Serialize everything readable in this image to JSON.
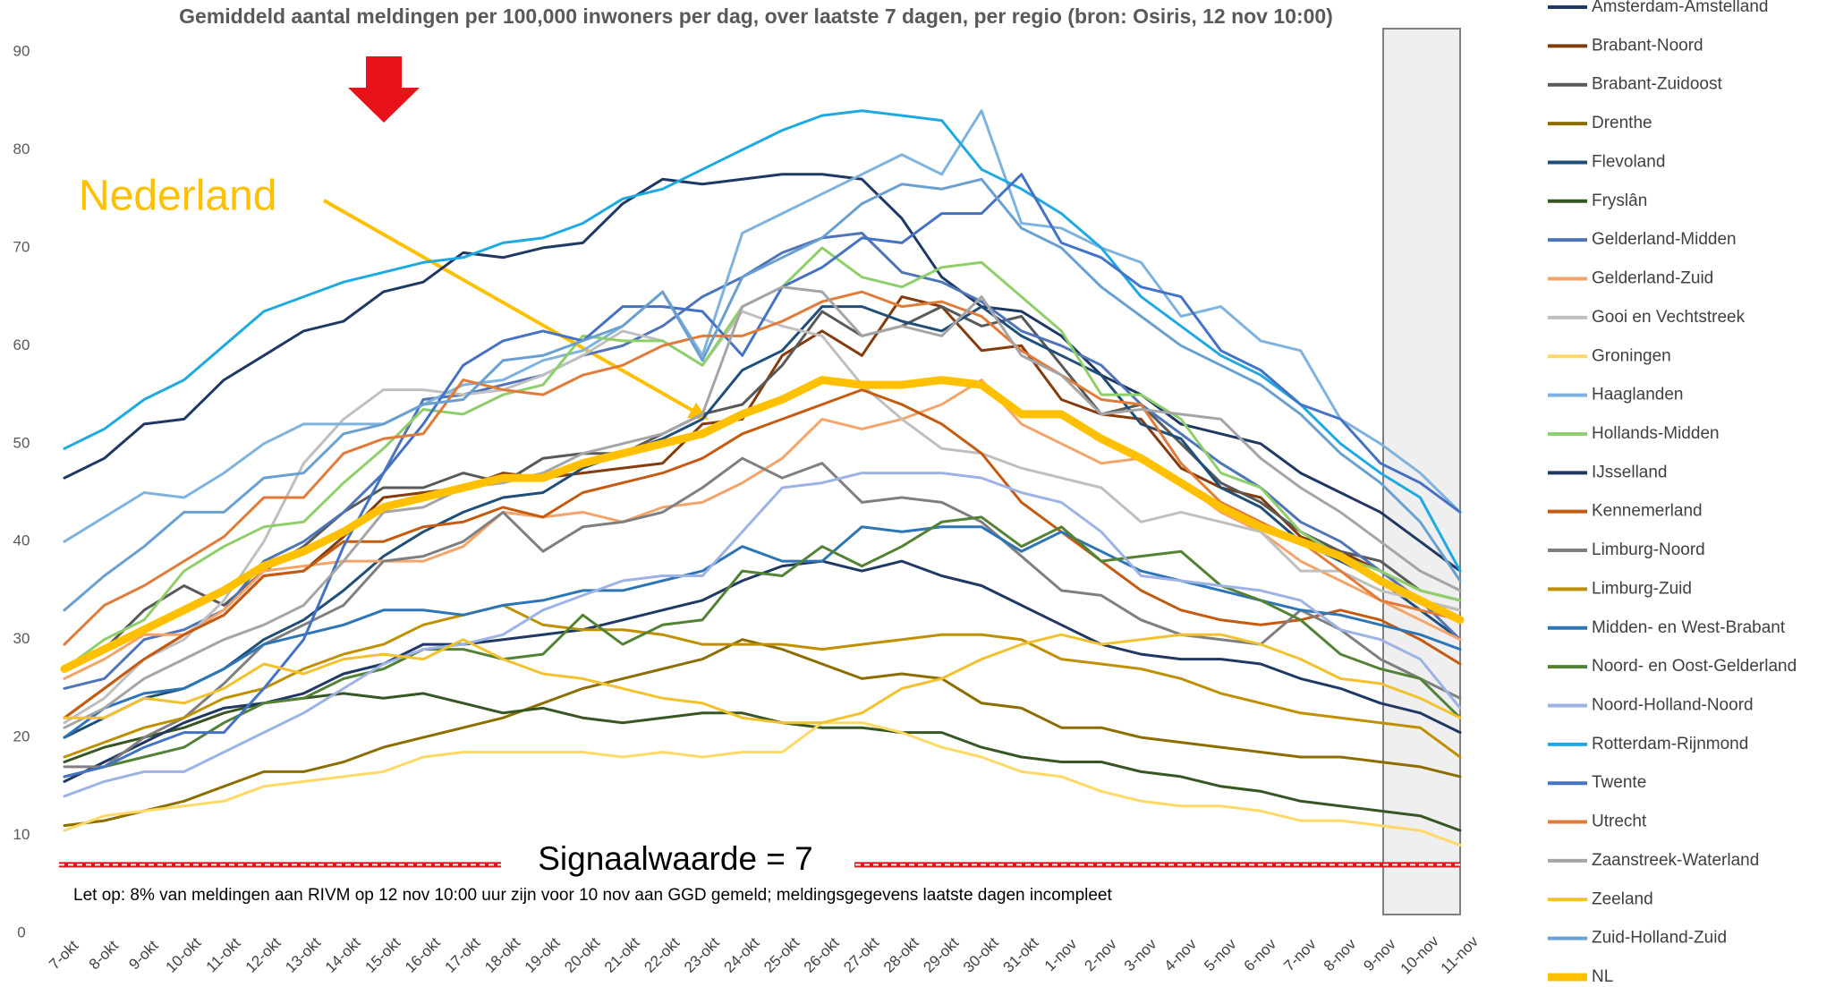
{
  "chart_data": {
    "type": "line",
    "title": "Gemiddeld aantal meldingen per 100,000 inwoners per dag, over laatste 7 dagen, per regio (bron: Osiris, 12 nov 10:00)",
    "annotations": {
      "nederland": "Nederland",
      "signal_label": "Signaalwaarde = 7",
      "note": "Let op: 8% van meldingen aan RIVM op 12 nov 10:00 uur zijn voor 10 nov aan GGD gemeld; meldingsgegevens laatste dagen incompleet"
    },
    "signal_value": 7,
    "grid": false,
    "legend": "right",
    "ylim": [
      0,
      90
    ],
    "yticks": [
      0,
      10,
      20,
      30,
      40,
      50,
      60,
      70,
      80,
      90
    ],
    "categories": [
      "7-okt",
      "8-okt",
      "9-okt",
      "10-okt",
      "11-okt",
      "12-okt",
      "13-okt",
      "14-okt",
      "15-okt",
      "16-okt",
      "17-okt",
      "18-okt",
      "19-okt",
      "20-okt",
      "21-okt",
      "22-okt",
      "23-okt",
      "24-okt",
      "25-okt",
      "26-okt",
      "27-okt",
      "28-okt",
      "29-okt",
      "30-okt",
      "31-okt",
      "1-nov",
      "2-nov",
      "3-nov",
      "4-nov",
      "5-nov",
      "6-nov",
      "7-nov",
      "8-nov",
      "9-nov",
      "10-nov",
      "11-nov"
    ],
    "series": [
      {
        "name": "Amsterdam-Amstelland",
        "color": "#1f3864",
        "values": [
          46.5,
          48.5,
          52,
          52.5,
          56.5,
          59,
          61.5,
          62.5,
          65.5,
          66.5,
          69.5,
          69,
          70,
          70.5,
          74.5,
          77,
          76.5,
          77,
          77.5,
          77.5,
          77,
          73,
          67,
          64,
          63.5,
          61,
          57,
          55,
          52,
          51,
          50,
          47,
          45,
          43,
          40,
          37
        ]
      },
      {
        "name": "Brabant-Noord",
        "color": "#843c0c",
        "values": [
          22,
          25,
          28,
          30.5,
          32.5,
          36.5,
          37,
          40.5,
          44.5,
          45,
          45.5,
          47,
          46.5,
          47,
          47.5,
          48,
          52,
          52.5,
          59,
          61.5,
          59,
          65,
          64,
          59.5,
          60,
          54.5,
          53,
          52.5,
          47.5,
          45.5,
          44.5,
          40.5,
          39,
          37,
          34,
          33
        ]
      },
      {
        "name": "Brabant-Zuidoost",
        "color": "#595959",
        "values": [
          27,
          29,
          33,
          35.5,
          33.5,
          37,
          39.5,
          43,
          45.5,
          45.5,
          47,
          46,
          48.5,
          49,
          49,
          51,
          53,
          54,
          58,
          63.5,
          61,
          62,
          64,
          62,
          63,
          58,
          53,
          54,
          50,
          46,
          44,
          41,
          39,
          38,
          35,
          34
        ]
      },
      {
        "name": "Drenthe",
        "color": "#8c6d00",
        "values": [
          11,
          11.5,
          12.5,
          13.5,
          15,
          16.5,
          16.5,
          17.5,
          19,
          20,
          21,
          22,
          23.5,
          25,
          26,
          27,
          28,
          30,
          29,
          27.5,
          26,
          26.5,
          26,
          23.5,
          23,
          21,
          21,
          20,
          19.5,
          19,
          18.5,
          18,
          18,
          17.5,
          17,
          16
        ]
      },
      {
        "name": "Flevoland",
        "color": "#1f4e79",
        "values": [
          20,
          22,
          24,
          25,
          27,
          30,
          32,
          35,
          38.5,
          41,
          43,
          44.5,
          45,
          47.5,
          49,
          50.5,
          52.5,
          57.5,
          59.5,
          64,
          64,
          62.5,
          61.5,
          64,
          61,
          59,
          57,
          52,
          50.5,
          45.5,
          43.5,
          40,
          38,
          36,
          33,
          30
        ]
      },
      {
        "name": "Fryslân",
        "color": "#375623",
        "values": [
          17.5,
          19,
          20,
          21,
          22.5,
          23.5,
          24,
          24.5,
          24,
          24.5,
          23.5,
          22.5,
          23,
          22,
          21.5,
          22,
          22.5,
          22.5,
          21.5,
          21,
          21,
          20.5,
          20.5,
          19,
          18,
          17.5,
          17.5,
          16.5,
          16,
          15,
          14.5,
          13.5,
          13,
          12.5,
          12,
          10.5
        ]
      },
      {
        "name": "Gelderland-Midden",
        "color": "#4f74b8",
        "values": [
          25,
          26,
          30,
          31,
          33,
          38,
          40,
          43,
          47,
          54.5,
          55,
          56,
          57,
          59,
          60,
          62,
          65,
          67,
          69.5,
          71,
          71.5,
          67.5,
          66.5,
          64.5,
          61.5,
          60,
          58,
          54,
          51,
          48,
          45.5,
          42,
          40,
          37,
          34,
          30
        ]
      },
      {
        "name": "Gelderland-Zuid",
        "color": "#f4a46a",
        "values": [
          26,
          28,
          30.5,
          30.5,
          33,
          37,
          37.5,
          38,
          38,
          38,
          39.5,
          43,
          42.5,
          43,
          42,
          43.5,
          44,
          46,
          48.5,
          52.5,
          51.5,
          52.5,
          54,
          56.5,
          52,
          50,
          48,
          48.5,
          46,
          43,
          41,
          38,
          36,
          34,
          32,
          30
        ]
      },
      {
        "name": "Gooi en Vechtstreek",
        "color": "#bfbfbf",
        "values": [
          21.5,
          24,
          28,
          30,
          34,
          40,
          48,
          52.5,
          55.5,
          55.5,
          55,
          55.5,
          57,
          59,
          61.5,
          60.5,
          58,
          63.5,
          62,
          61,
          56,
          52.5,
          49.5,
          49,
          47.5,
          46.5,
          45.5,
          42,
          43,
          42,
          41,
          37,
          37,
          35,
          34,
          33
        ]
      },
      {
        "name": "Groningen",
        "color": "#ffd966",
        "values": [
          10.5,
          12,
          12.5,
          13,
          13.5,
          15,
          15.5,
          16,
          16.5,
          18,
          18.5,
          18.5,
          18.5,
          18.5,
          18,
          18.5,
          18,
          18.5,
          18.5,
          21.5,
          21.5,
          20.5,
          19,
          18,
          16.5,
          16,
          14.5,
          13.5,
          13,
          13,
          12.5,
          11.5,
          11.5,
          11,
          10.5,
          9
        ]
      },
      {
        "name": "Haaglanden",
        "color": "#7fb2dc",
        "values": [
          40,
          42.5,
          45,
          44.5,
          47,
          50,
          52,
          52,
          52,
          54,
          56,
          56.5,
          58.5,
          59.5,
          62,
          65.5,
          59,
          71.5,
          73.5,
          75.5,
          77.5,
          79.5,
          77.5,
          84,
          72.5,
          72,
          70,
          68.5,
          63,
          64,
          60.5,
          59.5,
          52.5,
          50,
          47,
          43
        ]
      },
      {
        "name": "Hollands-Midden",
        "color": "#8fcf6a",
        "values": [
          27,
          30,
          32,
          37,
          39.5,
          41.5,
          42,
          46,
          49.5,
          53.5,
          53,
          55,
          56,
          61,
          60.5,
          60.5,
          58,
          64,
          66,
          70,
          67,
          66,
          68,
          68.5,
          65,
          61.5,
          55,
          55,
          52.5,
          47,
          45.5,
          41,
          38.5,
          37,
          35,
          34
        ]
      },
      {
        "name": "IJsselland",
        "color": "#203864",
        "values": [
          15.5,
          17.5,
          19.5,
          21.5,
          23,
          23.5,
          24.5,
          26.5,
          27.5,
          29.5,
          29.5,
          30,
          30.5,
          31,
          32,
          33,
          34,
          36,
          37.5,
          38,
          37,
          38,
          36.5,
          35.5,
          33.5,
          31.5,
          29.5,
          28.5,
          28,
          28,
          27.5,
          26,
          25,
          23.5,
          22.5,
          20.5
        ]
      },
      {
        "name": "Kennemerland",
        "color": "#c55a11",
        "values": [
          22,
          25,
          28,
          30.5,
          32.5,
          36.5,
          37,
          40,
          40,
          41.5,
          42,
          43.5,
          42.5,
          45,
          46,
          47,
          48.5,
          51,
          52.5,
          54,
          55.5,
          54,
          52,
          49,
          44,
          41,
          38,
          35,
          33,
          32,
          31.5,
          32,
          33,
          32,
          30,
          27.5
        ]
      },
      {
        "name": "Limburg-Noord",
        "color": "#7f7f7f",
        "values": [
          17,
          17,
          20,
          22,
          25.5,
          29.5,
          31.5,
          33.5,
          38,
          38.5,
          40,
          43,
          39,
          41.5,
          42,
          43,
          45.5,
          48.5,
          46.5,
          48,
          44,
          44.5,
          44,
          42,
          38.5,
          35,
          34.5,
          32,
          30.5,
          30,
          29.5,
          33,
          31,
          28,
          26,
          24
        ]
      },
      {
        "name": "Limburg-Zuid",
        "color": "#bf9000",
        "values": [
          18,
          19.5,
          21,
          22,
          24,
          25,
          27,
          28.5,
          29.5,
          31.5,
          32.5,
          33.5,
          31.5,
          31,
          31,
          30.5,
          29.5,
          29.5,
          29.5,
          29,
          29.5,
          30,
          30.5,
          30.5,
          30,
          28,
          27.5,
          27,
          26,
          24.5,
          23.5,
          22.5,
          22,
          21.5,
          21,
          18
        ]
      },
      {
        "name": "Midden- en West-Brabant",
        "color": "#2e75b6",
        "values": [
          20,
          23,
          24.5,
          25,
          27,
          29.5,
          30.5,
          31.5,
          33,
          33,
          32.5,
          33.5,
          34,
          35,
          35,
          36,
          37,
          39.5,
          38,
          38,
          41.5,
          41,
          41.5,
          41.5,
          39,
          41,
          39,
          37,
          36,
          35,
          34,
          33,
          32.5,
          31.5,
          30.5,
          29
        ]
      },
      {
        "name": "Noord- en Oost-Gelderland",
        "color": "#548235",
        "values": [
          16,
          17,
          18,
          19,
          21.5,
          23.5,
          24,
          26,
          27,
          29,
          29,
          28,
          28.5,
          32.5,
          29.5,
          31.5,
          32,
          37,
          36.5,
          39.5,
          37.5,
          39.5,
          42,
          42.5,
          39.5,
          41.5,
          38,
          38.5,
          39,
          35.5,
          34,
          32,
          28.5,
          27,
          26,
          22
        ]
      },
      {
        "name": "Noord-Holland-Noord",
        "color": "#9db3e6",
        "values": [
          14,
          15.5,
          16.5,
          16.5,
          18.5,
          20.5,
          22.5,
          25,
          27.5,
          29,
          29.5,
          30.5,
          33,
          34.5,
          36,
          36.5,
          36.5,
          41,
          45.5,
          46,
          47,
          47,
          47,
          46.5,
          45,
          44,
          41,
          36.5,
          36,
          35.5,
          35,
          34,
          31,
          30,
          28,
          23
        ]
      },
      {
        "name": "Rotterdam-Rijnmond",
        "color": "#1fa9e1",
        "values": [
          49.5,
          51.5,
          54.5,
          56.5,
          60,
          63.5,
          65,
          66.5,
          67.5,
          68.5,
          69,
          70.5,
          71,
          72.5,
          75,
          76,
          78,
          80,
          82,
          83.5,
          84,
          83.5,
          83,
          78,
          76,
          73.5,
          70,
          65,
          62,
          59,
          57,
          54,
          50,
          47,
          44.5,
          37
        ]
      },
      {
        "name": "Twente",
        "color": "#4472c4",
        "values": [
          16,
          17,
          19,
          20.5,
          20.5,
          25,
          30,
          39.5,
          47,
          52,
          58,
          60.5,
          61.5,
          60.5,
          64,
          64,
          63.5,
          59,
          66,
          68,
          71,
          70.5,
          73.5,
          73.5,
          77.5,
          70.5,
          69,
          66,
          65,
          59.5,
          57.5,
          54,
          52.5,
          48,
          46,
          43
        ]
      },
      {
        "name": "Utrecht",
        "color": "#e07b39",
        "values": [
          29.5,
          33.5,
          35.5,
          38,
          40.5,
          44.5,
          44.5,
          49,
          50.5,
          51,
          56.5,
          55.5,
          55,
          57,
          58,
          60,
          61,
          61,
          62.5,
          64.5,
          65.5,
          64,
          64.5,
          63,
          59.5,
          57,
          54.5,
          54,
          48,
          44,
          42,
          40,
          37,
          34,
          33,
          32
        ]
      },
      {
        "name": "Zaanstreek-Waterland",
        "color": "#a5a5a5",
        "values": [
          21,
          23,
          26,
          28,
          30,
          31.5,
          33.5,
          38,
          43,
          43.5,
          45.5,
          46,
          47,
          49,
          50,
          51,
          53,
          64,
          66,
          65.5,
          61,
          62,
          61,
          65,
          59,
          57,
          53,
          53.5,
          53,
          52.5,
          48.5,
          45.5,
          43,
          40,
          37,
          35
        ]
      },
      {
        "name": "Zeeland",
        "color": "#f2c12e",
        "values": [
          22,
          22,
          24,
          23.5,
          25,
          27.5,
          26.5,
          28,
          28.5,
          28,
          30,
          28,
          26.5,
          26,
          25,
          24,
          23.5,
          22,
          21.5,
          21.5,
          22.5,
          25,
          26,
          28,
          29.5,
          30.5,
          29.5,
          30,
          30.5,
          30.5,
          29.5,
          28,
          26,
          25.5,
          24,
          22
        ]
      },
      {
        "name": "Zuid-Holland-Zuid",
        "color": "#6aa0d0",
        "values": [
          33,
          36.5,
          39.5,
          43,
          43,
          46.5,
          47,
          51,
          52,
          54,
          54.5,
          58.5,
          59,
          60.5,
          62,
          65.5,
          58.5,
          67,
          69,
          71,
          74.5,
          76.5,
          76,
          77,
          72,
          70,
          66,
          63,
          60,
          58,
          56,
          53,
          49,
          46,
          42,
          36
        ]
      },
      {
        "name": "NL",
        "color": "#ffc000",
        "values": [
          27,
          29,
          31,
          33,
          35,
          37.5,
          39,
          41,
          43.5,
          44.5,
          45.5,
          46.5,
          46.5,
          48,
          49,
          50,
          51,
          53,
          54.5,
          56.5,
          56,
          56,
          56.5,
          56,
          53,
          53,
          50.5,
          48.5,
          46,
          43.5,
          41.5,
          40,
          38.5,
          36,
          34,
          32
        ]
      }
    ]
  }
}
